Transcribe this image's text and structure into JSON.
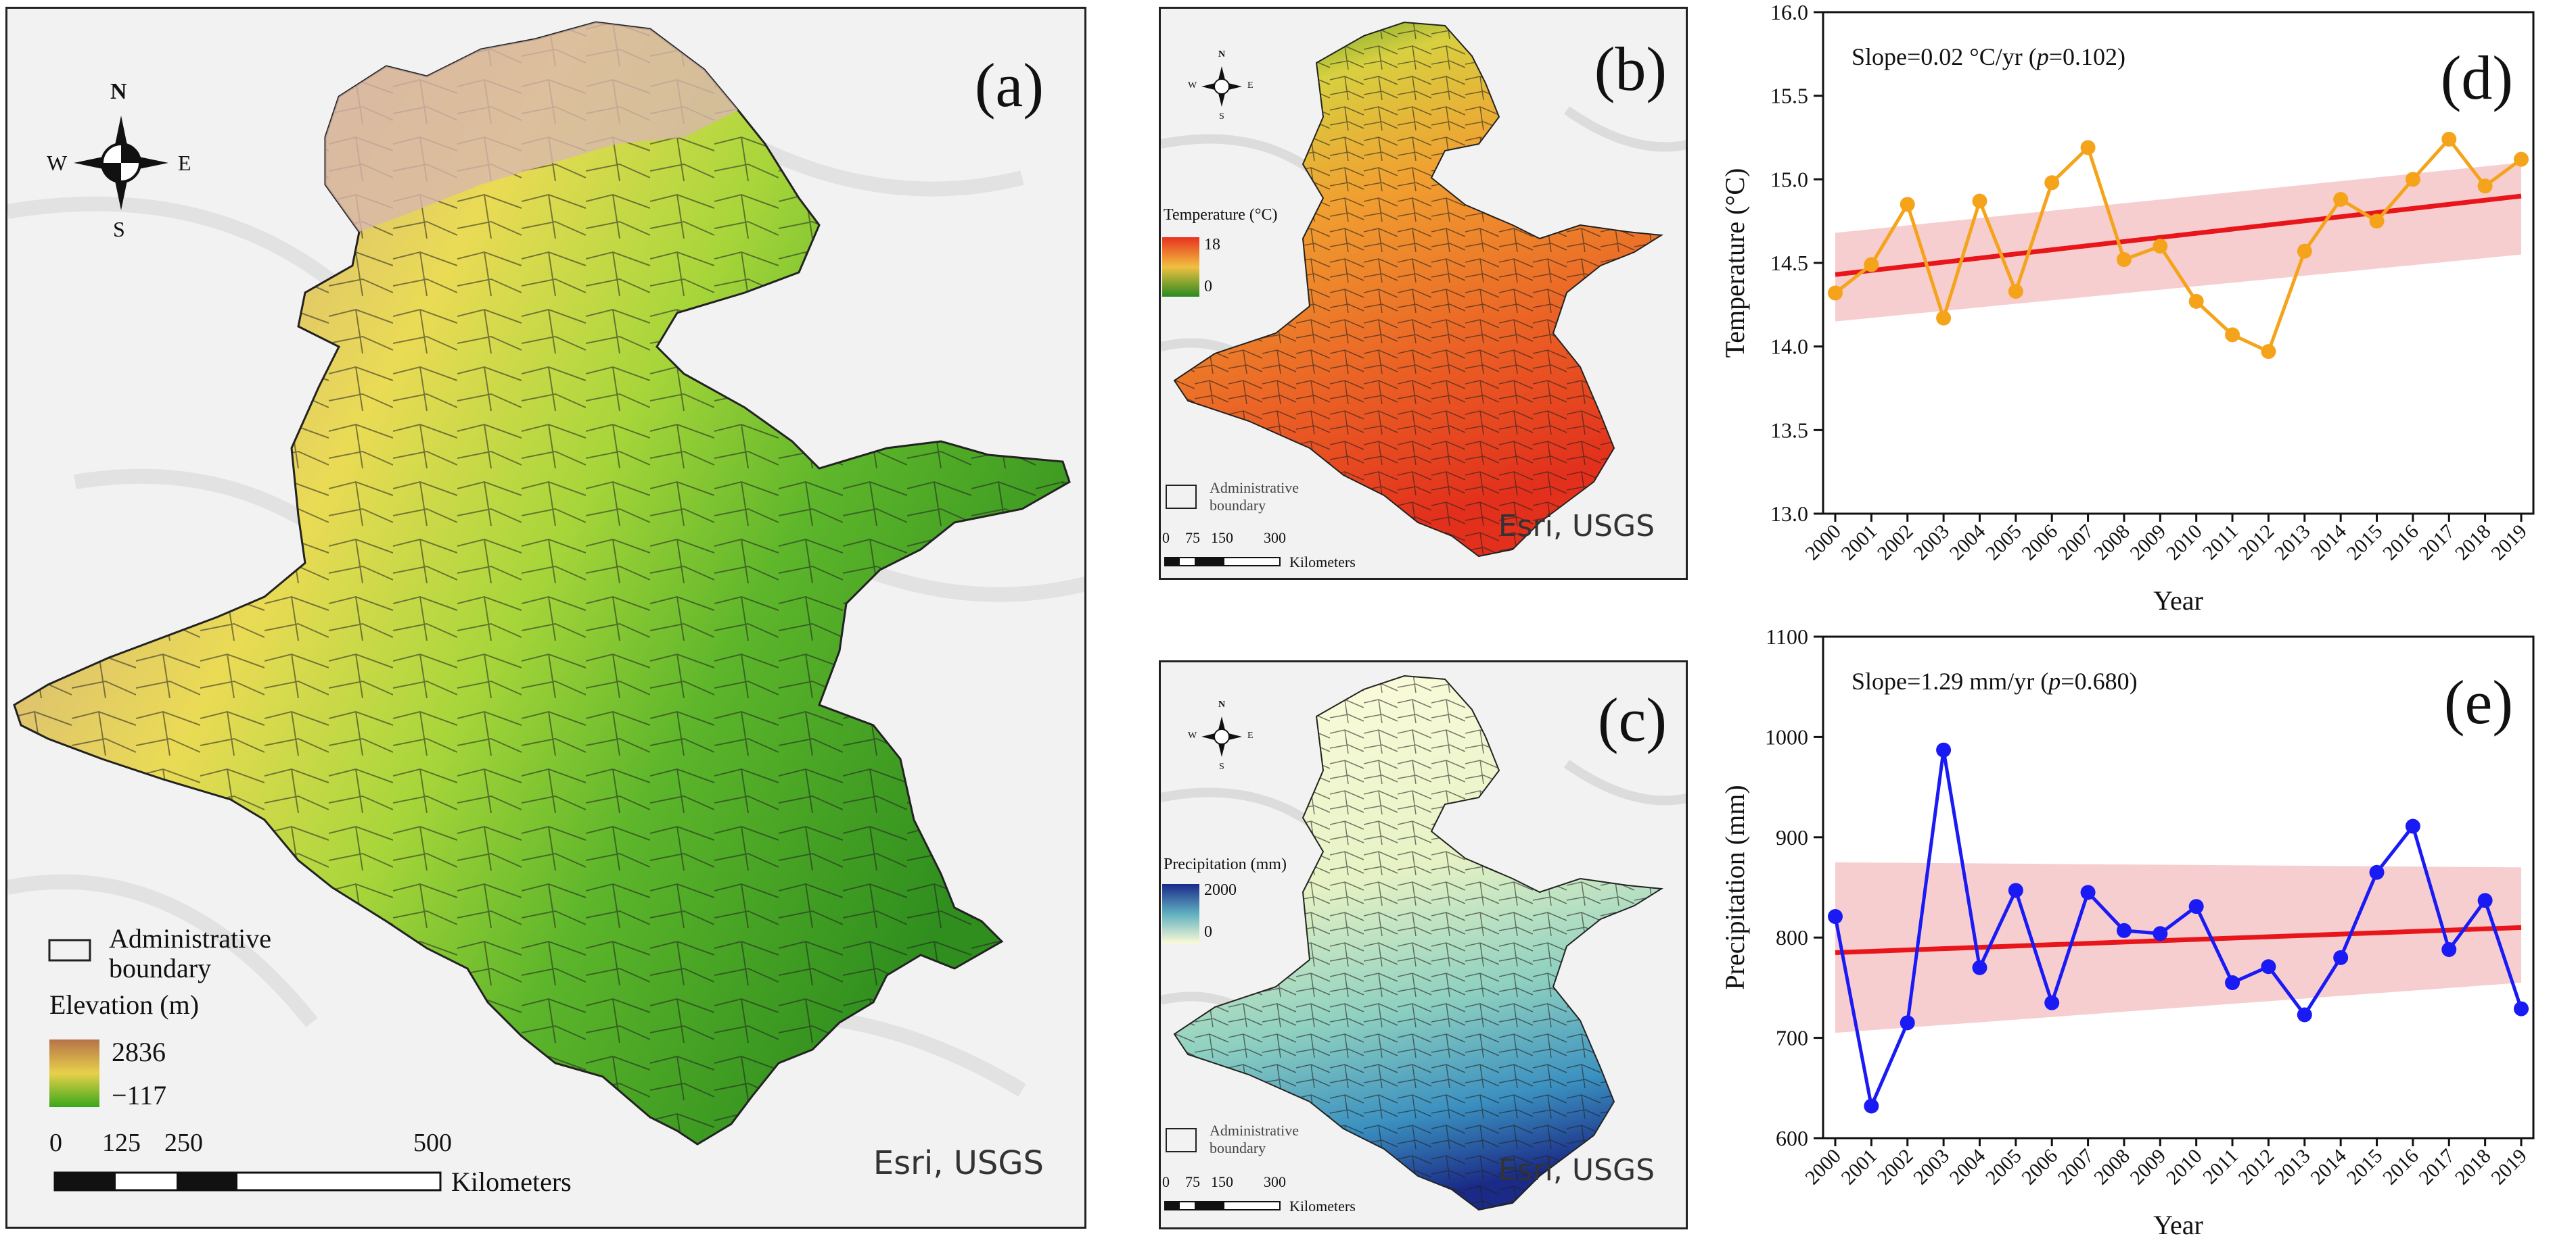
{
  "panel_a": {
    "label": "(a)",
    "compass": {
      "n": "N",
      "s": "S",
      "e": "E",
      "w": "W"
    },
    "legend": {
      "boundary_line1": "Administrative",
      "boundary_line2": "boundary",
      "title": "Elevation (m)",
      "max": "2836",
      "min": "−117",
      "color_high": "#b5734a",
      "color_mid": "#e8d04a",
      "color_low": "#39a81a"
    },
    "scale": {
      "t0": "0",
      "t1": "125",
      "t2": "250",
      "t3": "500",
      "unit": "Kilometers"
    },
    "attribution": "Esri, USGS"
  },
  "panel_b": {
    "label": "(b)",
    "compass": {
      "n": "N",
      "s": "S",
      "e": "E",
      "w": "W"
    },
    "legend": {
      "title": "Temperature (°C)",
      "max": "18",
      "min": "0",
      "boundary_line1": "Administrative",
      "boundary_line2": "boundary",
      "color_high": "#e8321e",
      "color_low": "#2a8a20"
    },
    "scale": {
      "t0": "0",
      "t1": "75",
      "t2": "150",
      "t3": "300",
      "unit": "Kilometers"
    },
    "attribution": "Esri, USGS"
  },
  "panel_c": {
    "label": "(c)",
    "compass": {
      "n": "N",
      "s": "S",
      "e": "E",
      "w": "W"
    },
    "legend": {
      "title": "Precipitation (mm)",
      "max": "2000",
      "min": "0",
      "boundary_line1": "Administrative",
      "boundary_line2": "boundary",
      "color_high": "#1a2a8a",
      "color_low": "#fbfbd5"
    },
    "scale": {
      "t0": "0",
      "t1": "75",
      "t2": "150",
      "t3": "300",
      "unit": "Kilometers"
    },
    "attribution": "Esri, USGS"
  },
  "chart_data": [
    {
      "panel": "(d)",
      "type": "line",
      "x": [
        2000,
        2001,
        2002,
        2003,
        2004,
        2005,
        2006,
        2007,
        2008,
        2009,
        2010,
        2011,
        2012,
        2013,
        2014,
        2015,
        2016,
        2017,
        2018,
        2019
      ],
      "x_tick_labels": [
        "2000",
        "2001",
        "2002",
        "2003",
        "2004",
        "2005",
        "2006",
        "2007",
        "2008",
        "2009",
        "2010",
        "2011",
        "2012",
        "2013",
        "2014",
        "2015",
        "2016",
        "2017",
        "2018",
        "2019"
      ],
      "values": [
        14.32,
        14.49,
        14.85,
        14.17,
        14.87,
        14.33,
        14.98,
        15.19,
        14.52,
        14.6,
        14.27,
        14.07,
        13.97,
        14.57,
        14.88,
        14.75,
        15.0,
        15.24,
        14.96,
        15.12
      ],
      "trend": {
        "start": 14.43,
        "end": 14.9,
        "ci_upper_start": 14.68,
        "ci_upper_end": 15.1,
        "ci_lower_start": 14.15,
        "ci_lower_end": 14.55
      },
      "annotation": "Slope=0.02 °C/yr (",
      "annotation_p": "p",
      "annotation_tail": "=0.102)",
      "xlabel": "Year",
      "ylabel": "Temperature (°C)",
      "ylim": [
        13.0,
        16.0
      ],
      "y_ticks": [
        13.0,
        13.5,
        14.0,
        14.5,
        15.0,
        15.5,
        16.0
      ],
      "y_tick_labels": [
        "13.0",
        "13.5",
        "14.0",
        "14.5",
        "15.0",
        "15.5",
        "16.0"
      ],
      "line_color": "#f5a31a",
      "trend_color": "#e8161a",
      "band_color": "#f6c5c8"
    },
    {
      "panel": "(e)",
      "type": "line",
      "x": [
        2000,
        2001,
        2002,
        2003,
        2004,
        2005,
        2006,
        2007,
        2008,
        2009,
        2010,
        2011,
        2012,
        2013,
        2014,
        2015,
        2016,
        2017,
        2018,
        2019
      ],
      "x_tick_labels": [
        "2000",
        "2001",
        "2002",
        "2003",
        "2004",
        "2005",
        "2006",
        "2007",
        "2008",
        "2009",
        "2010",
        "2011",
        "2012",
        "2013",
        "2014",
        "2015",
        "2016",
        "2017",
        "2018",
        "2019"
      ],
      "values": [
        821,
        632,
        715,
        987,
        770,
        847,
        735,
        845,
        807,
        804,
        831,
        755,
        771,
        723,
        780,
        865,
        911,
        788,
        837,
        729
      ],
      "trend": {
        "start": 785,
        "end": 810,
        "ci_upper_start": 875,
        "ci_upper_end": 870,
        "ci_lower_start": 705,
        "ci_lower_end": 755
      },
      "annotation": "Slope=1.29 mm/yr (",
      "annotation_p": "p",
      "annotation_tail": "=0.680)",
      "xlabel": "Year",
      "ylabel": "Precipitation (mm)",
      "ylim": [
        600,
        1100
      ],
      "y_ticks": [
        600,
        700,
        800,
        900,
        1000,
        1100
      ],
      "y_tick_labels": [
        "600",
        "700",
        "800",
        "900",
        "1000",
        "1100"
      ],
      "line_color": "#1a1af5",
      "trend_color": "#e8161a",
      "band_color": "#f6c5c8"
    }
  ]
}
